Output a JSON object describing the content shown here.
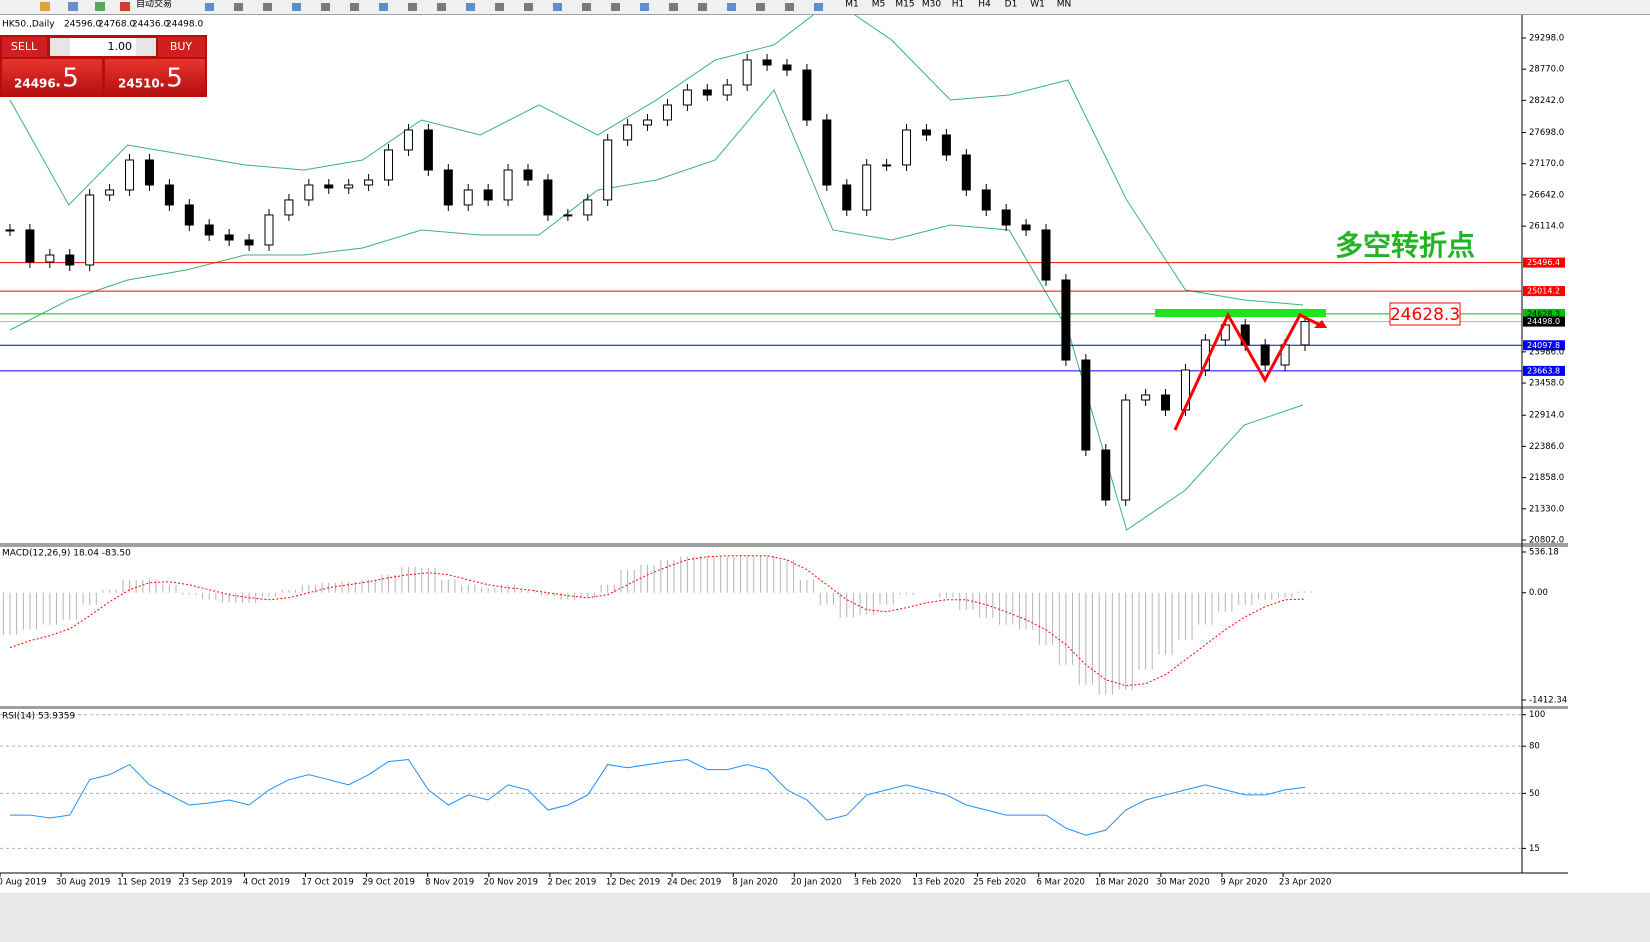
{
  "toolbar": {
    "left_label": "自动交易",
    "periods": [
      "M1",
      "M5",
      "M15",
      "M30",
      "H1",
      "H4",
      "D1",
      "W1",
      "MN"
    ]
  },
  "trade_panel": {
    "sell": "SELL",
    "buy": "BUY",
    "lots": "1.00",
    "sell_main": "24496",
    "sell_frac": ".5",
    "buy_main": "24510",
    "buy_frac": ".5"
  },
  "annotation": {
    "text": "多空转折点",
    "level_box": "24628.3"
  },
  "chart_data": [
    {
      "type": "candlestick",
      "title": "HK50.,Daily",
      "header_values": [
        "24596.0",
        "24768.0",
        "24436.0",
        "24498.0"
      ],
      "color_up": "#ffffff",
      "color_down": "#000000",
      "values": [
        26049,
        25507,
        25625,
        25456,
        26641,
        26726,
        27233,
        26810,
        26472,
        26133,
        25964,
        25879,
        25795,
        26303,
        26557,
        26810,
        26760,
        26810,
        26895,
        27403,
        27741,
        27064,
        26472,
        26726,
        26557,
        27064,
        26895,
        26303,
        26303,
        26557,
        27572,
        27826,
        27910,
        28164,
        28418,
        28333,
        28503,
        28926,
        28841,
        28756,
        27910,
        26810,
        26387,
        27149,
        27149,
        27741,
        27656,
        27318,
        26726,
        26387,
        26133,
        26049,
        25202,
        23848,
        22325,
        21479,
        23171,
        23256,
        23002,
        23679,
        24187,
        24441,
        24103,
        23764,
        24103,
        24498
      ],
      "bands": [
        {
          "color": "#3cb371",
          "values": [
            28249,
            26472,
            27487,
            27318,
            27149,
            27064,
            27233,
            27910,
            27656,
            28164,
            27656,
            28249,
            28926,
            29180,
            29941,
            29264,
            28249,
            28333,
            28587,
            26556,
            25033,
            24864,
            24779
          ]
        },
        {
          "color": "#3cb371",
          "values": [
            24356,
            24864,
            25202,
            25371,
            25625,
            25625,
            25744,
            26049,
            25964,
            25964,
            26726,
            26895,
            27233,
            28418,
            26049,
            25879,
            26133,
            26049,
            24356,
            20971,
            21648,
            22748,
            23087
          ]
        }
      ],
      "ylim": [
        20768,
        29687
      ],
      "yticks": [
        {
          "value": 29298,
          "label": "29298.0"
        },
        {
          "value": 28770,
          "label": "28770.0"
        },
        {
          "value": 28242,
          "label": "28242.0"
        },
        {
          "value": 27698,
          "label": "27698.0"
        },
        {
          "value": 27170,
          "label": "27170.0"
        },
        {
          "value": 26642,
          "label": "26642.0"
        },
        {
          "value": 26114,
          "label": "26114.0"
        },
        {
          "value": 23986,
          "label": "23986.0"
        },
        {
          "value": 23458,
          "label": "23458.0"
        },
        {
          "value": 22914,
          "label": "22914.0"
        },
        {
          "value": 22386,
          "label": "22386.0"
        },
        {
          "value": 21858,
          "label": "21858.0"
        },
        {
          "value": 21330,
          "label": "21330.0"
        },
        {
          "value": 20802,
          "label": "20802.0"
        }
      ],
      "levels": [
        {
          "value": 25496.4,
          "color": "#ff0000"
        },
        {
          "value": 25014.2,
          "color": "#ff0000"
        },
        {
          "value": 24628.3,
          "color": "#00c000"
        },
        {
          "value": 24498,
          "label": "24498.0",
          "color": "#000000"
        },
        {
          "value": 24097.8,
          "color": "#0000ff"
        },
        {
          "value": 23663.8,
          "color": "#0000ff"
        }
      ],
      "xtick_labels": [
        "0 Aug 2019",
        "30 Aug 2019",
        "11 Sep 2019",
        "23 Sep 2019",
        "4 Oct 2019",
        "17 Oct 2019",
        "29 Oct 2019",
        "8 Nov 2019",
        "20 Nov 2019",
        "2 Dec 2019",
        "12 Dec 2019",
        "24 Dec 2019",
        "8 Jan 2020",
        "20 Jan 2020",
        "3 Feb 2020",
        "13 Feb 2020",
        "25 Feb 2020",
        "6 Mar 2020",
        "18 Mar 2020",
        "30 Mar 2020",
        "9 Apr 2020",
        "23 Apr 2020"
      ]
    },
    {
      "type": "macd",
      "title": "MACD(12,26,9) 18.04 -83.50",
      "color": "#b4b4b4",
      "values": [
        -553,
        -487,
        -421,
        -355,
        -158,
        39,
        171,
        171,
        105,
        -26,
        -92,
        -132,
        -132,
        -53,
        39,
        105,
        132,
        145,
        171,
        237,
        342,
        329,
        171,
        105,
        66,
        105,
        39,
        -39,
        -92,
        -66,
        105,
        303,
        368,
        434,
        474,
        487,
        474,
        487,
        487,
        434,
        171,
        -158,
        -329,
        -290,
        -158,
        -26,
        0,
        -66,
        -224,
        -329,
        -421,
        -487,
        -684,
        -948,
        -1211,
        -1342,
        -1277,
        -1013,
        -816,
        -619,
        -421,
        -250,
        -158,
        -92,
        -66,
        18
      ],
      "signal": {
        "color": "#ff0000",
        "values": [
          -724,
          -632,
          -566,
          -474,
          -303,
          -118,
          39,
          132,
          145,
          105,
          39,
          -26,
          -66,
          -92,
          -66,
          0,
          66,
          105,
          145,
          197,
          237,
          263,
          237,
          171,
          105,
          66,
          39,
          0,
          -39,
          -66,
          -26,
          105,
          237,
          342,
          434,
          474,
          487,
          487,
          487,
          434,
          303,
          105,
          -92,
          -224,
          -250,
          -197,
          -132,
          -92,
          -92,
          -158,
          -250,
          -355,
          -487,
          -684,
          -948,
          -1145,
          -1224,
          -1198,
          -1079,
          -882,
          -684,
          -487,
          -316,
          -184,
          -92,
          -83.5
        ]
      },
      "ylim": [
        -1478,
        589
      ],
      "yticks": [
        536.18,
        {
          "value": 0,
          "label": "0.00"
        },
        -1412.34
      ]
    },
    {
      "type": "line",
      "title": "RSI(14) 53.9359",
      "color": "#1e90ff",
      "values": [
        36.2,
        36.2,
        34.3,
        36.2,
        58.7,
        61.9,
        68.3,
        55.4,
        49,
        42.6,
        43.9,
        45.8,
        42.6,
        52.2,
        58.7,
        61.9,
        58.7,
        55.4,
        61.9,
        70.2,
        71.5,
        52.2,
        42.6,
        49,
        45.8,
        55.4,
        52.2,
        39.4,
        42.6,
        49,
        68.3,
        66.3,
        68.3,
        70.2,
        71.5,
        65.1,
        65.1,
        68.3,
        65.1,
        52.2,
        45.8,
        33,
        36.2,
        49,
        52.2,
        55.4,
        52.2,
        49,
        42.6,
        39.4,
        36.2,
        36.2,
        36.2,
        27.9,
        23.4,
        26.6,
        39.4,
        45.8,
        49,
        52.2,
        55.4,
        52.2,
        49,
        49,
        52.2,
        53.9
      ],
      "ylim": [
        0,
        103
      ],
      "yticks": [
        15,
        50,
        80,
        100
      ]
    }
  ]
}
